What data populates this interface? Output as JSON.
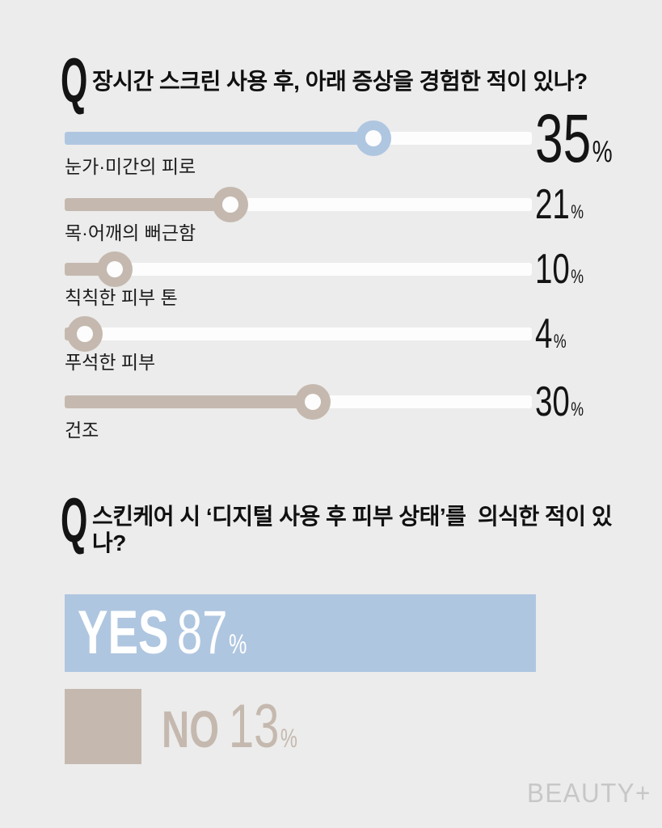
{
  "page": {
    "background": "#ececec",
    "brand": "BEAUTY+"
  },
  "colors": {
    "background": "#ececec",
    "blue": "#afc6e0",
    "taupe": "#c5b9af",
    "track_white": "#fdfdfd",
    "text_dark": "#141414",
    "brand_gray": "#c7c7c7"
  },
  "q1": {
    "badge": "Q",
    "text": "장시간 스크린 사용 후, 아래 증상을 경험한 적이 있나?"
  },
  "q2": {
    "badge": "Q",
    "text": "스킨케어 시 ‘디지털 사용 후 피부 상태’를  의식한 적이 있나?"
  },
  "chart_data": [
    {
      "type": "bar",
      "style": "horizontal-slider",
      "title": "장시간 스크린 사용 후, 아래 증상을 경험한 적이 있나?",
      "categories": [
        "눈가·미간의 피로",
        "목·어깨의 뻐근함",
        "칙칙한 피부 톤",
        "푸석한 피부",
        "건조"
      ],
      "values": [
        35,
        21,
        10,
        4,
        30
      ],
      "unit": "%",
      "bar_colors": [
        "#afc6e0",
        "#c5b9af",
        "#c5b9af",
        "#c5b9af",
        "#c5b9af"
      ],
      "knob_fraction": [
        0.661,
        0.355,
        0.107,
        0.043,
        0.531
      ],
      "track_color": "#fdfdfd",
      "legend_position": "none",
      "grid": false
    },
    {
      "type": "bar",
      "style": "yes-no",
      "title": "스킨케어 시 ‘디지털 사용 후 피부 상태’를 의식한 적이 있나?",
      "categories": [
        "YES",
        "NO"
      ],
      "values": [
        87,
        13
      ],
      "unit": "%",
      "bar_colors": [
        "#afc6e0",
        "#c5b9af"
      ],
      "legend_position": "none",
      "grid": false
    }
  ]
}
